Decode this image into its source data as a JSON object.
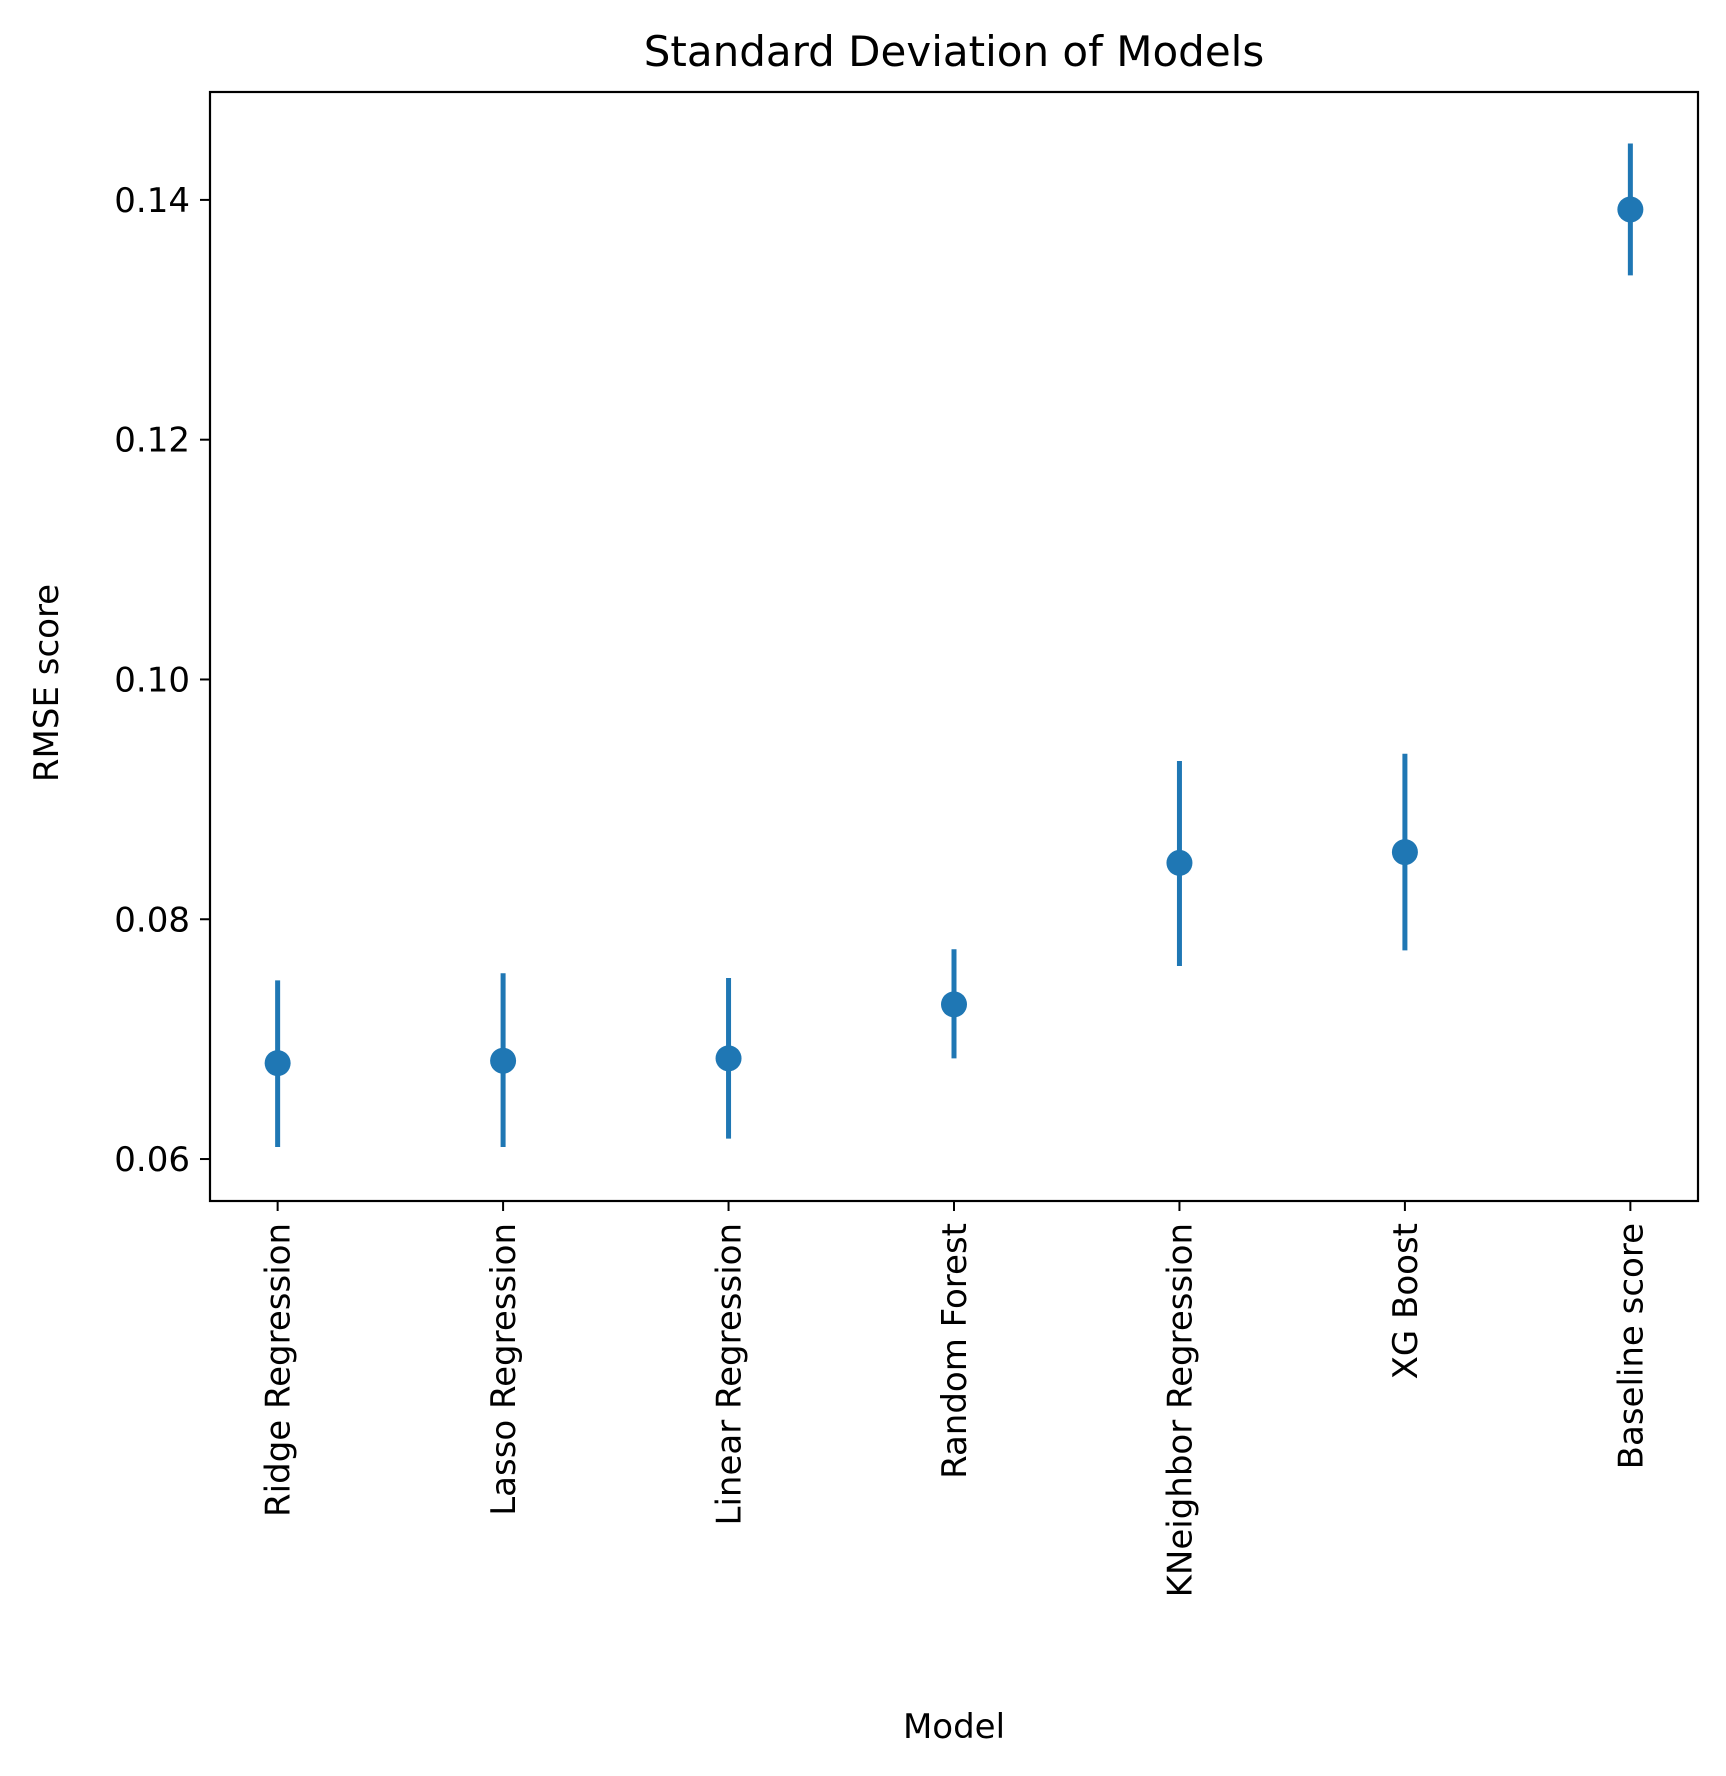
{
  "chart_data": {
    "type": "scatter",
    "title": "Standard Deviation of Models",
    "xlabel": "Model",
    "ylabel": "RMSE score",
    "categories": [
      "Ridge Regression",
      "Lasso Regression",
      "Linear Regression",
      "Random Forest",
      "KNeighbor Regression",
      "XG Boost",
      "Baseline score"
    ],
    "series": [
      {
        "values": [
          0.068,
          0.0682,
          0.0684,
          0.0729,
          0.0847,
          0.0856,
          0.1392
        ],
        "error_low": [
          0.061,
          0.061,
          0.0617,
          0.0684,
          0.0761,
          0.0774,
          0.1337
        ],
        "error_high": [
          0.0749,
          0.0755,
          0.0751,
          0.0775,
          0.0932,
          0.0938,
          0.1447
        ],
        "color": "#1f77b4"
      }
    ],
    "ylim": [
      0.0565,
      0.149
    ],
    "yticks": [
      0.06,
      0.08,
      0.1,
      0.12,
      0.14
    ],
    "ytick_labels": [
      "0.06",
      "0.08",
      "0.10",
      "0.12",
      "0.14"
    ],
    "grid": false,
    "legend": false
  }
}
